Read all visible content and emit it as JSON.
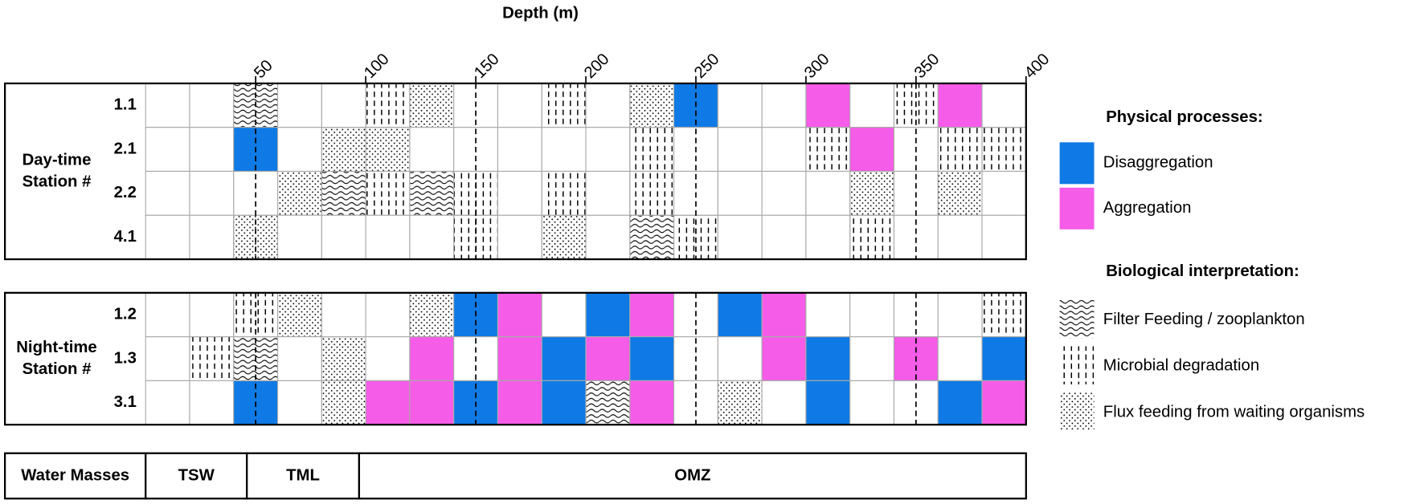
{
  "chart_data": {
    "type": "grid",
    "x_label": "Depth (m)",
    "xlim": [
      0,
      400
    ],
    "xticks": [
      50,
      100,
      150,
      200,
      250,
      300,
      350,
      400
    ],
    "dashed_lines": [
      50,
      150,
      250,
      350
    ],
    "panels": [
      {
        "label": [
          "Day-time",
          "Station #"
        ],
        "rows": [
          {
            "station": "1.1",
            "cells": [
              null,
              null,
              "waves",
              null,
              null,
              "dashes",
              "dots",
              null,
              null,
              "dashes",
              null,
              "dots",
              "#0f7ae5",
              null,
              null,
              "#f55ce7",
              null,
              "dashes",
              "#f55ce7",
              null
            ]
          },
          {
            "station": "2.1",
            "cells": [
              null,
              null,
              "#0f7ae5",
              null,
              "dots",
              "dots",
              null,
              null,
              null,
              null,
              null,
              "dashes",
              null,
              null,
              null,
              "dashes",
              "#f55ce7",
              null,
              "dashes",
              "dashes"
            ]
          },
          {
            "station": "2.2",
            "cells": [
              null,
              null,
              null,
              "dots",
              "waves",
              "dashes",
              "waves",
              "dashes",
              null,
              "dashes",
              null,
              "dashes",
              null,
              null,
              null,
              null,
              "dots",
              null,
              "dots",
              null
            ]
          },
          {
            "station": "4.1",
            "cells": [
              null,
              null,
              "dots",
              null,
              null,
              null,
              null,
              "dashes",
              null,
              "dots",
              null,
              "waves",
              "dashes",
              null,
              null,
              null,
              "dashes",
              null,
              null,
              null
            ]
          }
        ]
      },
      {
        "label": [
          "Night-time",
          "Station #"
        ],
        "rows": [
          {
            "station": "1.2",
            "cells": [
              null,
              null,
              "dashes",
              "dots",
              null,
              null,
              "dots",
              "#0f7ae5",
              "#f55ce7",
              null,
              "#0f7ae5",
              "#f55ce7",
              null,
              "#0f7ae5",
              "#f55ce7",
              null,
              null,
              null,
              null,
              "dashes"
            ]
          },
          {
            "station": "1.3",
            "cells": [
              null,
              "dashes",
              "waves",
              null,
              "dots",
              null,
              "#f55ce7",
              null,
              "#f55ce7",
              "#0f7ae5",
              "#f55ce7",
              "#0f7ae5",
              null,
              null,
              "#f55ce7",
              "#0f7ae5",
              null,
              "#f55ce7",
              null,
              "#0f7ae5"
            ]
          },
          {
            "station": "3.1",
            "cells": [
              null,
              null,
              "#0f7ae5",
              null,
              "dots",
              "#f55ce7",
              "#f55ce7",
              "#0f7ae5",
              "#f55ce7",
              "#0f7ae5",
              "waves",
              "#f55ce7",
              null,
              "dots",
              null,
              "#0f7ae5",
              null,
              null,
              "#0f7ae5",
              "#f55ce7"
            ]
          }
        ]
      }
    ],
    "water_masses": {
      "label": "Water Masses",
      "items": [
        {
          "label": "TSW",
          "from": 0,
          "to": 46
        },
        {
          "label": "TML",
          "from": 46,
          "to": 97
        },
        {
          "label": "OMZ",
          "from": 97,
          "to": 400
        }
      ]
    },
    "legend": {
      "physical_title": "Physical processes:",
      "physical": [
        {
          "label": "Disaggregation",
          "fill": "#0f7ae5"
        },
        {
          "label": "Aggregation",
          "fill": "#f55ce7"
        }
      ],
      "biological_title": "Biological interpretation:",
      "biological": [
        {
          "label": "Filter Feeding / zooplankton",
          "fill": "waves"
        },
        {
          "label": "Microbial degradation",
          "fill": "dashes"
        },
        {
          "label": "Flux feeding from waiting organisms",
          "fill": "dots"
        }
      ]
    }
  }
}
